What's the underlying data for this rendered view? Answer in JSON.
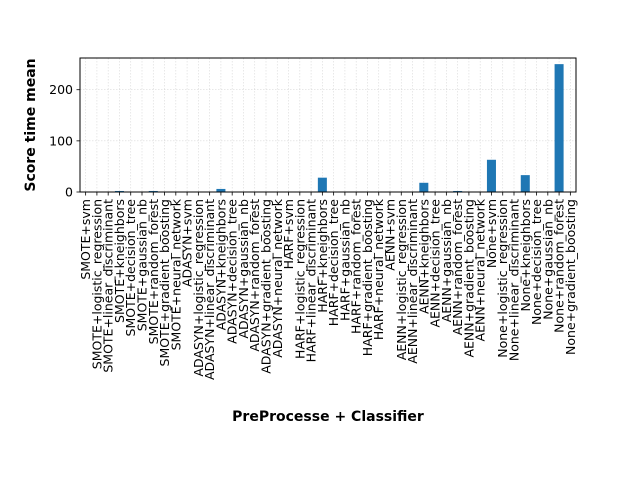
{
  "chart_data": {
    "type": "bar",
    "xlabel": "PreProcesse + Classifier",
    "ylabel": "Score time mean",
    "ylim": [
      0,
      262
    ],
    "yticks": [
      0,
      100,
      200
    ],
    "grid": true,
    "bar_color": "#1f77b4",
    "categories": [
      "SMOTE+svm",
      "SMOTE+logistic_regression",
      "SMOTE+linear_discriminant",
      "SMOTE+kneighbors",
      "SMOTE+decision_tree",
      "SMOTE+gaussian_nb",
      "SMOTE+random_forest",
      "SMOTE+gradient_boosting",
      "SMOTE+neural_network",
      "ADASYN+svm",
      "ADASYN+logistic_regression",
      "ADASYN+linear_discriminant",
      "ADASYN+kneighbors",
      "ADASYN+decision_tree",
      "ADASYN+gaussian_nb",
      "ADASYN+random_forest",
      "ADASYN+gradient_boosting",
      "ADASYN+neural_network",
      "HARF+svm",
      "HARF+logistic_regression",
      "HARF+linear_discriminant",
      "HARF+kneighbors",
      "HARF+decision_tree",
      "HARF+gaussian_nb",
      "HARF+random_forest",
      "HARF+gradient_boosting",
      "HARF+neural_network",
      "AENN+svm",
      "AENN+logistic_regression",
      "AENN+linear_discriminant",
      "AENN+kneighbors",
      "AENN+decision_tree",
      "AENN+gaussian_nb",
      "AENN+random_forest",
      "AENN+gradient_boosting",
      "AENN+neural_network",
      "None+svm",
      "None+logistic_regression",
      "None+linear_discriminant",
      "None+kneighbors",
      "None+decision_tree",
      "None+gaussian_nb",
      "None+random_forest",
      "None+gradient_boosting"
    ],
    "values": [
      0.2,
      0.1,
      0.1,
      2,
      0.3,
      0.2,
      2,
      0.2,
      0.4,
      0.2,
      0.1,
      0.1,
      6,
      0.3,
      0.2,
      0.4,
      0.2,
      0.4,
      0.2,
      0.1,
      0.1,
      28,
      0.3,
      0.2,
      0.5,
      0.2,
      0.4,
      0.2,
      0.1,
      0.1,
      18,
      0.3,
      0.2,
      2,
      0.2,
      0.4,
      63,
      0.1,
      0.1,
      33,
      0.3,
      0.2,
      250,
      0.4
    ]
  }
}
